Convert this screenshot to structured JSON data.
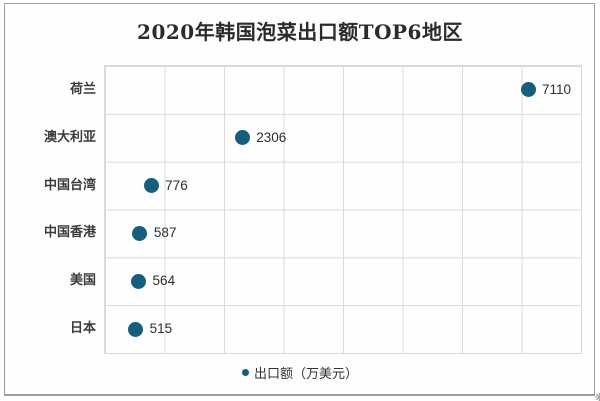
{
  "chart_data": {
    "type": "scatter",
    "title": "2020年韩国泡菜出口额TOP6地区",
    "categories": [
      "荷兰",
      "澳大利亚",
      "中国台湾",
      "中国香港",
      "美国",
      "日本"
    ],
    "values": [
      7110,
      2306,
      776,
      587,
      564,
      515
    ],
    "series_label": "出口额（万美元）",
    "orientation": "horizontal",
    "xlim": [
      0,
      8000
    ],
    "x_gridline_step": 1000,
    "grid": true,
    "legend_position": "bottom",
    "colors": {
      "dot": "#175d7d",
      "grid": "#d9d9d9",
      "frame_border": "#9d9da1",
      "title_text": "#2b2b2b",
      "category_text": "#3b3b3b",
      "value_text": "#2e2e2e",
      "background": "#ffffff"
    }
  },
  "watermark_fragment": "❋"
}
